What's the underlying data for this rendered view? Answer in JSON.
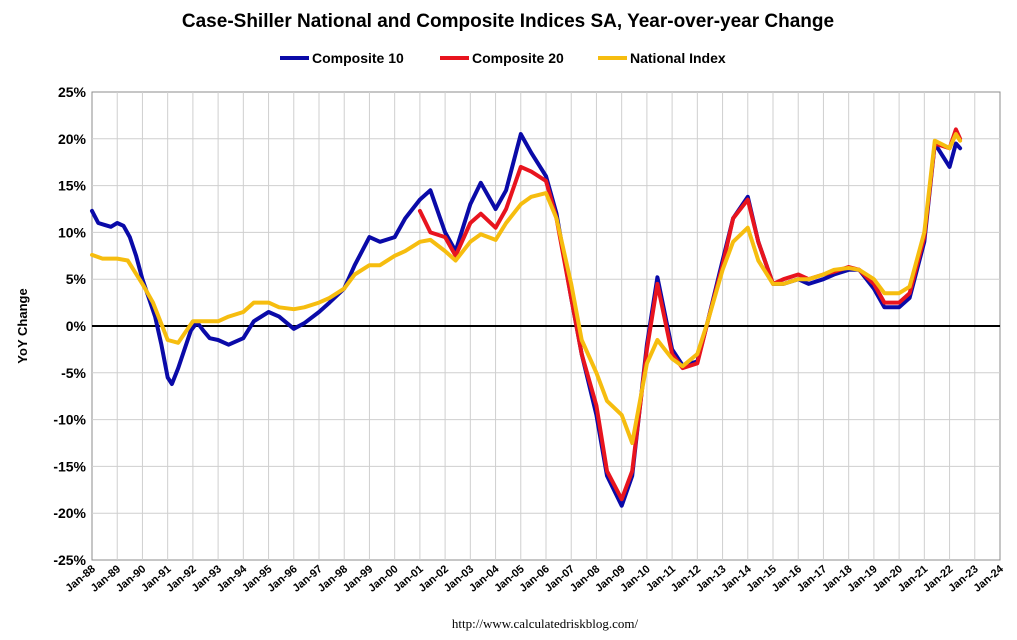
{
  "chart_data": {
    "type": "line",
    "title": "Case-Shiller National and Composite Indices SA, Year-over-year Change",
    "ylabel": "YoY Change",
    "xlabel": "",
    "ylim": [
      -25,
      25
    ],
    "xlim": [
      "1988-01",
      "2024-01"
    ],
    "y_ticks": [
      "-25%",
      "-20%",
      "-15%",
      "-10%",
      "-5%",
      "0%",
      "5%",
      "10%",
      "15%",
      "20%",
      "25%"
    ],
    "x_ticks": [
      "Jan-88",
      "Jan-89",
      "Jan-90",
      "Jan-91",
      "Jan-92",
      "Jan-93",
      "Jan-94",
      "Jan-95",
      "Jan-96",
      "Jan-97",
      "Jan-98",
      "Jan-99",
      "Jan-00",
      "Jan-01",
      "Jan-02",
      "Jan-03",
      "Jan-04",
      "Jan-05",
      "Jan-06",
      "Jan-07",
      "Jan-08",
      "Jan-09",
      "Jan-10",
      "Jan-11",
      "Jan-12",
      "Jan-13",
      "Jan-14",
      "Jan-15",
      "Jan-16",
      "Jan-17",
      "Jan-18",
      "Jan-19",
      "Jan-20",
      "Jan-21",
      "Jan-22",
      "Jan-23",
      "Jan-24"
    ],
    "grid": true,
    "legend_position": "top",
    "source": "http://www.calculatedriskblog.com/",
    "series": [
      {
        "name": "Composite 10",
        "color": "#0a0aa8",
        "points": [
          [
            "1988-01",
            12.3
          ],
          [
            "1988-04",
            11.0
          ],
          [
            "1988-07",
            10.8
          ],
          [
            "1988-10",
            10.6
          ],
          [
            "1989-01",
            11.0
          ],
          [
            "1989-04",
            10.7
          ],
          [
            "1989-07",
            9.5
          ],
          [
            "1989-10",
            7.5
          ],
          [
            "1990-01",
            5.0
          ],
          [
            "1990-04",
            3.0
          ],
          [
            "1990-07",
            1.0
          ],
          [
            "1990-10",
            -2.0
          ],
          [
            "1991-01",
            -5.5
          ],
          [
            "1991-03",
            -6.2
          ],
          [
            "1991-06",
            -4.5
          ],
          [
            "1991-09",
            -2.5
          ],
          [
            "1991-12",
            -0.5
          ],
          [
            "1992-03",
            0.4
          ],
          [
            "1992-06",
            -0.5
          ],
          [
            "1992-09",
            -1.3
          ],
          [
            "1993-01",
            -1.5
          ],
          [
            "1993-06",
            -2.0
          ],
          [
            "1994-01",
            -1.3
          ],
          [
            "1994-06",
            0.5
          ],
          [
            "1995-01",
            1.5
          ],
          [
            "1995-06",
            1.0
          ],
          [
            "1996-01",
            -0.3
          ],
          [
            "1996-06",
            0.3
          ],
          [
            "1997-01",
            1.5
          ],
          [
            "1997-06",
            2.5
          ],
          [
            "1998-01",
            4.0
          ],
          [
            "1998-06",
            6.5
          ],
          [
            "1999-01",
            9.5
          ],
          [
            "1999-06",
            9.0
          ],
          [
            "2000-01",
            9.5
          ],
          [
            "2000-06",
            11.5
          ],
          [
            "2001-01",
            13.5
          ],
          [
            "2001-06",
            14.5
          ],
          [
            "2002-01",
            10.0
          ],
          [
            "2002-06",
            8.0
          ],
          [
            "2003-01",
            13.0
          ],
          [
            "2003-06",
            15.3
          ],
          [
            "2004-01",
            12.5
          ],
          [
            "2004-06",
            14.5
          ],
          [
            "2005-01",
            20.5
          ],
          [
            "2005-06",
            18.5
          ],
          [
            "2006-01",
            16.0
          ],
          [
            "2006-06",
            12.0
          ],
          [
            "2007-01",
            3.0
          ],
          [
            "2007-06",
            -3.0
          ],
          [
            "2008-01",
            -9.5
          ],
          [
            "2008-06",
            -16.0
          ],
          [
            "2009-01",
            -19.2
          ],
          [
            "2009-06",
            -16.0
          ],
          [
            "2010-01",
            -2.0
          ],
          [
            "2010-06",
            5.2
          ],
          [
            "2011-01",
            -2.5
          ],
          [
            "2011-06",
            -4.2
          ],
          [
            "2012-01",
            -3.8
          ],
          [
            "2012-06",
            0.5
          ],
          [
            "2013-01",
            7.0
          ],
          [
            "2013-06",
            11.5
          ],
          [
            "2014-01",
            13.8
          ],
          [
            "2014-06",
            9.0
          ],
          [
            "2015-01",
            4.5
          ],
          [
            "2015-06",
            4.5
          ],
          [
            "2016-01",
            5.0
          ],
          [
            "2016-06",
            4.5
          ],
          [
            "2017-01",
            5.0
          ],
          [
            "2017-06",
            5.5
          ],
          [
            "2018-01",
            6.0
          ],
          [
            "2018-06",
            6.0
          ],
          [
            "2019-01",
            4.0
          ],
          [
            "2019-06",
            2.0
          ],
          [
            "2020-01",
            2.0
          ],
          [
            "2020-06",
            3.0
          ],
          [
            "2021-01",
            9.0
          ],
          [
            "2021-06",
            19.5
          ],
          [
            "2022-01",
            17.0
          ],
          [
            "2022-04",
            19.5
          ],
          [
            "2022-06",
            19.0
          ]
        ]
      },
      {
        "name": "Composite 20",
        "color": "#e8141e",
        "points": [
          [
            "2001-01",
            12.3
          ],
          [
            "2001-06",
            10.0
          ],
          [
            "2002-01",
            9.5
          ],
          [
            "2002-06",
            7.5
          ],
          [
            "2003-01",
            11.0
          ],
          [
            "2003-06",
            12.0
          ],
          [
            "2004-01",
            10.5
          ],
          [
            "2004-06",
            12.5
          ],
          [
            "2005-01",
            17.0
          ],
          [
            "2005-06",
            16.5
          ],
          [
            "2006-01",
            15.5
          ],
          [
            "2006-06",
            11.5
          ],
          [
            "2007-01",
            3.0
          ],
          [
            "2007-06",
            -3.0
          ],
          [
            "2008-01",
            -8.5
          ],
          [
            "2008-06",
            -15.5
          ],
          [
            "2009-01",
            -18.5
          ],
          [
            "2009-06",
            -15.5
          ],
          [
            "2010-01",
            -2.5
          ],
          [
            "2010-06",
            4.5
          ],
          [
            "2011-01",
            -3.0
          ],
          [
            "2011-06",
            -4.5
          ],
          [
            "2012-01",
            -4.0
          ],
          [
            "2012-06",
            0.5
          ],
          [
            "2013-01",
            6.5
          ],
          [
            "2013-06",
            11.5
          ],
          [
            "2014-01",
            13.5
          ],
          [
            "2014-06",
            9.0
          ],
          [
            "2015-01",
            4.5
          ],
          [
            "2015-06",
            5.0
          ],
          [
            "2016-01",
            5.5
          ],
          [
            "2016-06",
            5.0
          ],
          [
            "2017-01",
            5.5
          ],
          [
            "2017-06",
            5.8
          ],
          [
            "2018-01",
            6.3
          ],
          [
            "2018-06",
            6.0
          ],
          [
            "2019-01",
            4.5
          ],
          [
            "2019-06",
            2.5
          ],
          [
            "2020-01",
            2.5
          ],
          [
            "2020-06",
            3.5
          ],
          [
            "2021-01",
            9.5
          ],
          [
            "2021-06",
            19.5
          ],
          [
            "2022-01",
            19.0
          ],
          [
            "2022-04",
            21.0
          ],
          [
            "2022-06",
            20.0
          ]
        ]
      },
      {
        "name": "National Index",
        "color": "#f6bd0f",
        "points": [
          [
            "1988-01",
            7.6
          ],
          [
            "1988-06",
            7.2
          ],
          [
            "1989-01",
            7.2
          ],
          [
            "1989-06",
            7.0
          ],
          [
            "1990-01",
            4.5
          ],
          [
            "1990-06",
            2.5
          ],
          [
            "1991-01",
            -1.5
          ],
          [
            "1991-06",
            -1.8
          ],
          [
            "1992-01",
            0.5
          ],
          [
            "1992-06",
            0.5
          ],
          [
            "1993-01",
            0.5
          ],
          [
            "1993-06",
            1.0
          ],
          [
            "1994-01",
            1.5
          ],
          [
            "1994-06",
            2.5
          ],
          [
            "1995-01",
            2.5
          ],
          [
            "1995-06",
            2.0
          ],
          [
            "1996-01",
            1.8
          ],
          [
            "1996-06",
            2.0
          ],
          [
            "1997-01",
            2.5
          ],
          [
            "1997-06",
            3.0
          ],
          [
            "1998-01",
            4.0
          ],
          [
            "1998-06",
            5.5
          ],
          [
            "1999-01",
            6.5
          ],
          [
            "1999-06",
            6.5
          ],
          [
            "2000-01",
            7.5
          ],
          [
            "2000-06",
            8.0
          ],
          [
            "2001-01",
            9.0
          ],
          [
            "2001-06",
            9.2
          ],
          [
            "2002-01",
            8.0
          ],
          [
            "2002-06",
            7.0
          ],
          [
            "2003-01",
            9.0
          ],
          [
            "2003-06",
            9.8
          ],
          [
            "2004-01",
            9.2
          ],
          [
            "2004-06",
            11.0
          ],
          [
            "2005-01",
            13.0
          ],
          [
            "2005-06",
            13.8
          ],
          [
            "2006-01",
            14.2
          ],
          [
            "2006-06",
            11.5
          ],
          [
            "2007-01",
            4.5
          ],
          [
            "2007-06",
            -1.5
          ],
          [
            "2008-01",
            -5.0
          ],
          [
            "2008-06",
            -8.0
          ],
          [
            "2009-01",
            -9.5
          ],
          [
            "2009-06",
            -12.5
          ],
          [
            "2010-01",
            -4.0
          ],
          [
            "2010-06",
            -1.5
          ],
          [
            "2011-01",
            -3.5
          ],
          [
            "2011-06",
            -4.3
          ],
          [
            "2012-01",
            -3.0
          ],
          [
            "2012-06",
            0.5
          ],
          [
            "2013-01",
            6.0
          ],
          [
            "2013-06",
            9.0
          ],
          [
            "2014-01",
            10.5
          ],
          [
            "2014-06",
            7.0
          ],
          [
            "2015-01",
            4.5
          ],
          [
            "2015-06",
            4.5
          ],
          [
            "2016-01",
            5.0
          ],
          [
            "2016-06",
            5.0
          ],
          [
            "2017-01",
            5.5
          ],
          [
            "2017-06",
            6.0
          ],
          [
            "2018-01",
            6.2
          ],
          [
            "2018-06",
            6.0
          ],
          [
            "2019-01",
            5.0
          ],
          [
            "2019-06",
            3.5
          ],
          [
            "2020-01",
            3.5
          ],
          [
            "2020-06",
            4.2
          ],
          [
            "2021-01",
            10.0
          ],
          [
            "2021-06",
            19.8
          ],
          [
            "2022-01",
            19.0
          ],
          [
            "2022-04",
            20.5
          ],
          [
            "2022-06",
            19.8
          ]
        ]
      }
    ]
  }
}
